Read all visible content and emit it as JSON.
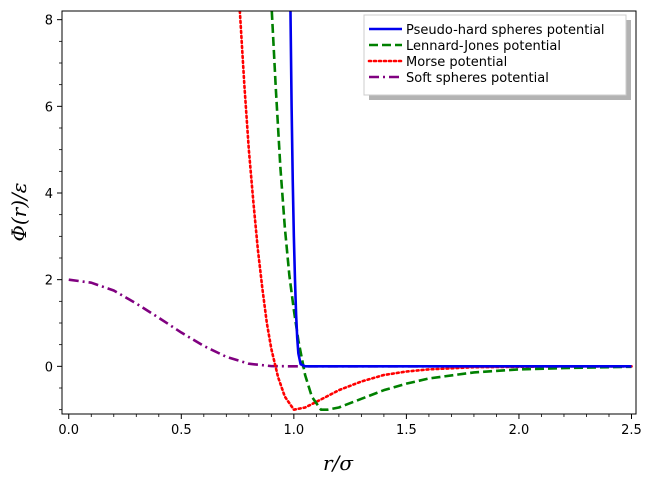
{
  "chart_data": {
    "type": "line",
    "xlabel": "r/σ",
    "ylabel": "Φ(r)/ε",
    "xlim": [
      -0.03,
      2.52
    ],
    "ylim": [
      -1.1,
      8.2
    ],
    "grid": false,
    "legend_position": "top-right",
    "x_ticks": [
      "0.0",
      "0.5",
      "1.0",
      "1.5",
      "2.0",
      "2.5"
    ],
    "y_ticks": [
      "0",
      "2",
      "4",
      "6",
      "8"
    ],
    "x_tick_values": [
      0.0,
      0.5,
      1.0,
      1.5,
      2.0,
      2.5
    ],
    "y_tick_values": [
      0,
      2,
      4,
      6,
      8
    ],
    "series": [
      {
        "name": "Pseudo-hard spheres potential",
        "color": "#0000ee",
        "dash": "solid",
        "x": [
          0.985,
          0.99,
          0.995,
          1.0,
          1.005,
          1.01,
          1.015,
          1.02,
          1.03,
          1.05,
          1.1,
          1.5,
          2.0,
          2.5
        ],
        "y": [
          8.2,
          6.0,
          4.3,
          3.0,
          2.0,
          1.2,
          0.65,
          0.3,
          0.05,
          0.0,
          0.0,
          0.0,
          0.0,
          0.0
        ]
      },
      {
        "name": "Lennard-Jones potential",
        "color": "#008000",
        "dash": "dashed",
        "x": [
          0.902,
          0.92,
          0.94,
          0.96,
          0.98,
          1.0,
          1.02,
          1.05,
          1.08,
          1.12,
          1.15,
          1.2,
          1.3,
          1.4,
          1.5,
          1.6,
          1.8,
          2.0,
          2.2,
          2.5
        ],
        "y": [
          8.2,
          6.4,
          4.6,
          3.2,
          2.1,
          1.3,
          0.6,
          -0.2,
          -0.7,
          -1.0,
          -1.0,
          -0.95,
          -0.75,
          -0.55,
          -0.4,
          -0.28,
          -0.14,
          -0.07,
          -0.04,
          -0.01
        ]
      },
      {
        "name": "Morse potential",
        "color": "#ff0000",
        "dash": "dotted",
        "x": [
          0.76,
          0.78,
          0.8,
          0.82,
          0.84,
          0.86,
          0.88,
          0.9,
          0.93,
          0.96,
          1.0,
          1.05,
          1.1,
          1.2,
          1.3,
          1.4,
          1.5,
          1.6,
          1.8,
          2.0,
          2.2,
          2.5
        ],
        "y": [
          8.2,
          6.5,
          5.0,
          3.8,
          2.7,
          1.8,
          1.0,
          0.4,
          -0.25,
          -0.7,
          -1.0,
          -0.95,
          -0.82,
          -0.55,
          -0.35,
          -0.2,
          -0.12,
          -0.07,
          -0.02,
          -0.01,
          0.0,
          0.0
        ],
        "_note_removed": null
      },
      {
        "name": "Soft spheres potential",
        "color": "#800080",
        "dash": "dash-dot",
        "x": [
          0.0,
          0.1,
          0.2,
          0.3,
          0.4,
          0.5,
          0.6,
          0.7,
          0.8,
          0.9,
          1.0,
          1.1,
          1.5,
          2.0,
          2.5
        ],
        "y": [
          2.0,
          1.93,
          1.75,
          1.45,
          1.12,
          0.78,
          0.47,
          0.22,
          0.06,
          0.005,
          0.0,
          0.0,
          0.0,
          0.0,
          0.0
        ]
      }
    ]
  }
}
